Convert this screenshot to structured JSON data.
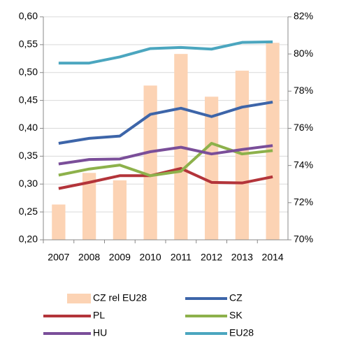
{
  "chart_data": {
    "type": "combo",
    "categories": [
      "2007",
      "2008",
      "2009",
      "2010",
      "2011",
      "2012",
      "2013",
      "2014"
    ],
    "series": [
      {
        "name": "CZ rel EU28",
        "type": "bar",
        "axis": "y2",
        "color": "#fcd3b4",
        "values": [
          71.9,
          73.6,
          73.2,
          78.3,
          80.0,
          77.7,
          79.1,
          80.6
        ]
      },
      {
        "name": "CZ",
        "type": "line",
        "color": "#3d65a9",
        "values": [
          0.373,
          0.382,
          0.386,
          0.425,
          0.436,
          0.421,
          0.438,
          0.447
        ]
      },
      {
        "name": "PL",
        "type": "line",
        "color": "#b3343a",
        "values": [
          0.292,
          0.303,
          0.315,
          0.315,
          0.328,
          0.303,
          0.302,
          0.313
        ]
      },
      {
        "name": "SK",
        "type": "line",
        "color": "#8db14b",
        "values": [
          0.316,
          0.327,
          0.334,
          0.315,
          0.323,
          0.373,
          0.354,
          0.36
        ]
      },
      {
        "name": "HU",
        "type": "line",
        "color": "#7a4e99",
        "values": [
          0.336,
          0.344,
          0.345,
          0.358,
          0.366,
          0.354,
          0.362,
          0.369
        ]
      },
      {
        "name": "EU28",
        "type": "line",
        "color": "#4ba6bf",
        "values": [
          0.517,
          0.517,
          0.528,
          0.543,
          0.545,
          0.542,
          0.554,
          0.555
        ]
      }
    ],
    "ylim": [
      0.2,
      0.6
    ],
    "yticks": [
      {
        "value": 0.2,
        "label": "0,20"
      },
      {
        "value": 0.25,
        "label": "0,25"
      },
      {
        "value": 0.3,
        "label": "0,30"
      },
      {
        "value": 0.35,
        "label": "0,35"
      },
      {
        "value": 0.4,
        "label": "0,40"
      },
      {
        "value": 0.45,
        "label": "0,45"
      },
      {
        "value": 0.5,
        "label": "0,50"
      },
      {
        "value": 0.55,
        "label": "0,55"
      },
      {
        "value": 0.6,
        "label": "0,60"
      }
    ],
    "y2lim": [
      70,
      82
    ],
    "y2ticks": [
      {
        "value": 70,
        "label": "70%"
      },
      {
        "value": 72,
        "label": "72%"
      },
      {
        "value": 74,
        "label": "74%"
      },
      {
        "value": 76,
        "label": "76%"
      },
      {
        "value": 78,
        "label": "78%"
      },
      {
        "value": 80,
        "label": "80%"
      },
      {
        "value": 82,
        "label": "82%"
      }
    ],
    "grid": true
  }
}
